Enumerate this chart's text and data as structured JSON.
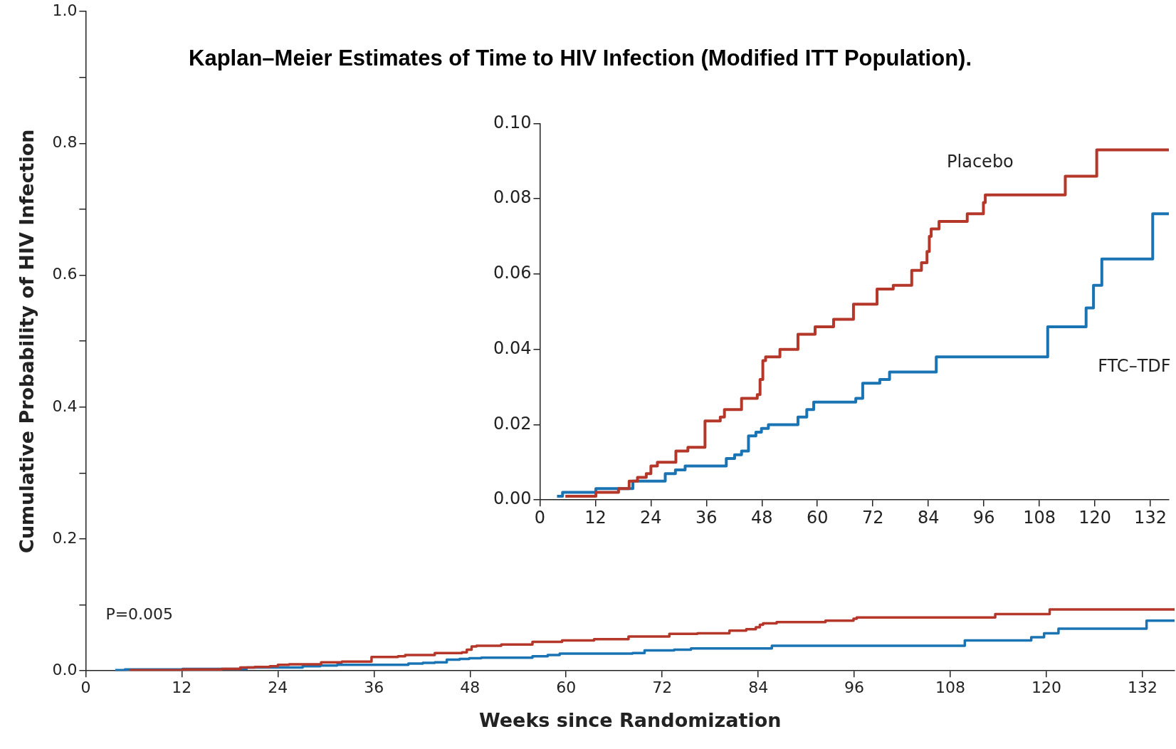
{
  "chart_data": [
    {
      "type": "step",
      "title": "Kaplan–Meier Estimates of Time to HIV Infection (Modified ITT Population).",
      "xlabel": "Weeks since Randomization",
      "ylabel": "Cumulative Probability of HIV Infection",
      "annotations": [
        "P=0.005"
      ],
      "xlim": [
        0,
        136
      ],
      "ylim": [
        0,
        1
      ],
      "xticks": [
        0,
        12,
        24,
        36,
        48,
        60,
        72,
        84,
        96,
        108,
        120,
        132
      ],
      "yticks": [
        {
          "value": 0,
          "label": "0.0"
        },
        {
          "value": 0.1,
          "label": null
        },
        {
          "value": 0.2,
          "label": "0.2"
        },
        {
          "value": 0.3,
          "label": null
        },
        {
          "value": 0.4,
          "label": "0.4"
        },
        {
          "value": 0.5,
          "label": null
        },
        {
          "value": 0.6,
          "label": "0.6"
        },
        {
          "value": 0.7,
          "label": null
        },
        {
          "value": 0.8,
          "label": "0.8"
        },
        {
          "value": 0.9,
          "label": null
        },
        {
          "value": 1,
          "label": "1.0"
        }
      ],
      "grid": false,
      "legend": false,
      "marker": "none",
      "line_style": "solid",
      "series": [
        {
          "color": "#b5372a",
          "x": [
            5.5,
            12.1,
            17,
            19.3,
            21.1,
            23,
            24,
            25.4,
            29.4,
            32,
            35.7,
            39,
            39.9,
            43.6,
            47,
            47.6,
            48.2,
            48.8,
            51.9,
            55.8,
            59.5,
            63.5,
            67.8,
            72.9,
            76.4,
            80.4,
            82.5,
            83.7,
            84.2,
            84.6,
            86.3,
            92.4,
            95.9,
            96.3,
            113.6,
            120.4,
            136
          ],
          "values": [
            0.001,
            0.002,
            0.003,
            0.005,
            0.006,
            0.007,
            0.009,
            0.01,
            0.013,
            0.014,
            0.021,
            0.022,
            0.024,
            0.027,
            0.028,
            0.032,
            0.037,
            0.038,
            0.04,
            0.044,
            0.046,
            0.048,
            0.052,
            0.056,
            0.057,
            0.061,
            0.063,
            0.066,
            0.07,
            0.072,
            0.074,
            0.076,
            0.079,
            0.081,
            0.086,
            0.093,
            0.093
          ]
        },
        {
          "color": "#1a74b4",
          "x": [
            3.7,
            4.9,
            12.1,
            20.1,
            24.4,
            27.1,
            29.3,
            31.4,
            36.6,
            40.3,
            42.1,
            43.6,
            45.1,
            46.7,
            47.9,
            49.4,
            55.8,
            57.7,
            59.2,
            68.3,
            69.8,
            73.5,
            75.6,
            85.7,
            109.8,
            118.1,
            119.7,
            121.5,
            132.5,
            136
          ],
          "values": [
            0.001,
            0.002,
            0.003,
            0.005,
            0.005,
            0.007,
            0.008,
            0.009,
            0.009,
            0.011,
            0.012,
            0.013,
            0.017,
            0.018,
            0.019,
            0.02,
            0.022,
            0.024,
            0.026,
            0.027,
            0.031,
            0.032,
            0.034,
            0.038,
            0.046,
            0.051,
            0.057,
            0.064,
            0.076,
            0.076
          ]
        }
      ]
    },
    {
      "type": "step",
      "xlim": [
        0,
        136
      ],
      "ylim": [
        0,
        0.1
      ],
      "xticks": [
        0,
        12,
        24,
        36,
        48,
        60,
        72,
        84,
        96,
        108,
        120,
        132
      ],
      "yticks": [
        {
          "value": 0,
          "label": "0.00"
        },
        {
          "value": 0.02,
          "label": "0.02"
        },
        {
          "value": 0.04,
          "label": "0.04"
        },
        {
          "value": 0.06,
          "label": "0.06"
        },
        {
          "value": 0.08,
          "label": "0.08"
        },
        {
          "value": 0.1,
          "label": "0.10"
        }
      ],
      "grid": false,
      "legend": false,
      "marker": "none",
      "line_style": "solid",
      "series": [
        {
          "name": "Placebo",
          "color": "#b5372a",
          "x": [
            5.5,
            12.1,
            17,
            19.3,
            21.1,
            23,
            24,
            25.4,
            29.4,
            32,
            35.7,
            39,
            39.9,
            43.6,
            47,
            47.6,
            48.2,
            48.8,
            51.9,
            55.8,
            59.5,
            63.5,
            67.8,
            72.9,
            76.4,
            80.4,
            82.5,
            83.7,
            84.2,
            84.6,
            86.3,
            92.4,
            95.9,
            96.3,
            113.6,
            120.4,
            136
          ],
          "values": [
            0.001,
            0.002,
            0.003,
            0.005,
            0.006,
            0.007,
            0.009,
            0.01,
            0.013,
            0.014,
            0.021,
            0.022,
            0.024,
            0.027,
            0.028,
            0.032,
            0.037,
            0.038,
            0.04,
            0.044,
            0.046,
            0.048,
            0.052,
            0.056,
            0.057,
            0.061,
            0.063,
            0.066,
            0.07,
            0.072,
            0.074,
            0.076,
            0.079,
            0.081,
            0.086,
            0.093,
            0.093
          ]
        },
        {
          "name": "FTC–TDF",
          "color": "#1a74b4",
          "x": [
            3.7,
            4.9,
            12.1,
            20.1,
            24.4,
            27.1,
            29.3,
            31.4,
            36.6,
            40.3,
            42.1,
            43.6,
            45.1,
            46.7,
            47.9,
            49.4,
            55.8,
            57.7,
            59.2,
            68.3,
            69.8,
            73.5,
            75.6,
            85.7,
            109.8,
            118.1,
            119.7,
            121.5,
            132.5,
            136
          ],
          "values": [
            0.001,
            0.002,
            0.003,
            0.005,
            0.005,
            0.007,
            0.008,
            0.009,
            0.009,
            0.011,
            0.012,
            0.013,
            0.017,
            0.018,
            0.019,
            0.02,
            0.022,
            0.024,
            0.026,
            0.027,
            0.031,
            0.032,
            0.034,
            0.038,
            0.046,
            0.051,
            0.057,
            0.064,
            0.076,
            0.076
          ]
        }
      ]
    }
  ]
}
